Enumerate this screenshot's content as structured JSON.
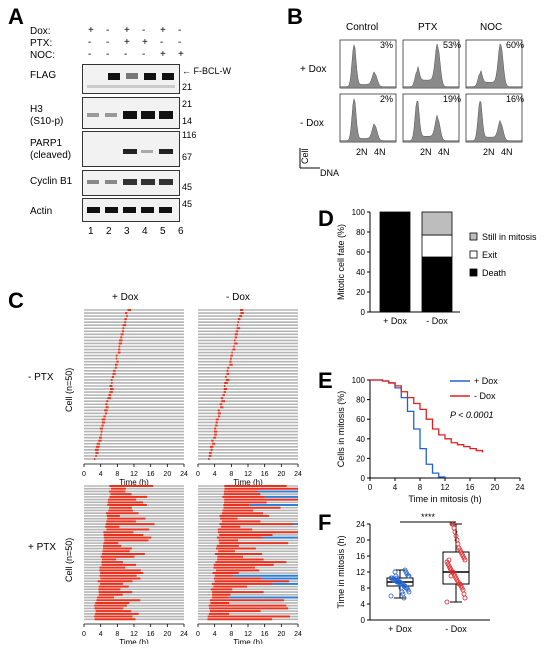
{
  "panels": {
    "A": "A",
    "B": "B",
    "C": "C",
    "D": "D",
    "E": "E",
    "F": "F"
  },
  "panelA": {
    "condition_labels": [
      "Dox:",
      "PTX:",
      "NOC:"
    ],
    "condition_rows": [
      [
        "+",
        "-",
        "+",
        "-",
        "+",
        "-"
      ],
      [
        "-",
        "-",
        "+",
        "+",
        "-",
        "-"
      ],
      [
        "-",
        "-",
        "-",
        "-",
        "+",
        "+"
      ]
    ],
    "blots": [
      {
        "name": "FLAG",
        "sublabel": "",
        "markers": [
          "21"
        ]
      },
      {
        "name": "H3",
        "sublabel": "(S10-p)",
        "markers": [
          "21",
          "14"
        ]
      },
      {
        "name": "PARP1",
        "sublabel": "(cleaved)",
        "markers": [
          "116",
          "67"
        ]
      },
      {
        "name": "Cyclin B1",
        "sublabel": "",
        "markers": [
          "45"
        ]
      },
      {
        "name": "Actin",
        "sublabel": "",
        "markers": [
          "45"
        ]
      }
    ],
    "arrow_label": "F-BCL-W",
    "lanes": [
      "1",
      "2",
      "3",
      "4",
      "5",
      "6"
    ]
  },
  "panelB": {
    "columns": [
      "Control",
      "PTX",
      "NOC"
    ],
    "rows": [
      "+ Dox",
      "- Dox"
    ],
    "percents": [
      [
        "3%",
        "53%",
        "60%"
      ],
      [
        "2%",
        "19%",
        "16%"
      ]
    ],
    "xticks": [
      "2N",
      "4N"
    ],
    "ylabel": "Cell",
    "xlabel": "DNA"
  },
  "panelC": {
    "col_titles": [
      "+ Dox",
      "- Dox"
    ],
    "row_labels": [
      "- PTX",
      "+ PTX"
    ],
    "ylabel": "Cell (n=50)",
    "xlabel": "Time (h)",
    "xticks": [
      "0",
      "4",
      "8",
      "12",
      "16",
      "20",
      "24"
    ],
    "colors": {
      "interphase": "#b5b5b5",
      "mitosis": "#e8321e",
      "exit": "#2f7fd6"
    }
  },
  "chart_data": [
    {
      "type": "bar",
      "categories": [
        "+ Dox",
        "- Dox"
      ],
      "series": [
        {
          "name": "Death",
          "values": [
            100,
            55
          ]
        },
        {
          "name": "Exit",
          "values": [
            0,
            22
          ]
        },
        {
          "name": "Still in mitosis",
          "values": [
            0,
            23
          ]
        }
      ],
      "ylabel": "Mitotic cell fate (%)",
      "ylim": [
        0,
        100
      ],
      "yticks": [
        "0",
        "20",
        "40",
        "60",
        "80",
        "100"
      ],
      "colors": [
        "#000000",
        "#ffffff",
        "#bdbdbd"
      ]
    },
    {
      "type": "line",
      "series": [
        {
          "name": "+ Dox",
          "color": "#2060d0",
          "x": [
            0,
            2,
            3,
            4,
            5,
            6,
            7,
            8,
            9,
            10,
            11,
            12
          ],
          "y": [
            100,
            99,
            97,
            92,
            82,
            68,
            50,
            30,
            14,
            5,
            1,
            0
          ]
        },
        {
          "name": "- Dox",
          "color": "#e02020",
          "x": [
            0,
            2,
            3,
            4,
            5,
            6,
            7,
            8,
            9,
            10,
            11,
            12,
            13,
            14,
            15,
            16,
            17,
            18
          ],
          "y": [
            100,
            99,
            97,
            94,
            88,
            82,
            76,
            70,
            60,
            50,
            44,
            40,
            36,
            34,
            32,
            30,
            28,
            26
          ]
        }
      ],
      "xlabel": "Time in mitosis (h)",
      "ylabel": "Cells in mitosis (%)",
      "xticks": [
        "0",
        "4",
        "8",
        "12",
        "16",
        "20",
        "24"
      ],
      "yticks": [
        "0",
        "20",
        "40",
        "60",
        "80",
        "100"
      ],
      "xlim": [
        0,
        24
      ],
      "ylim": [
        0,
        100
      ],
      "annotation": "P < 0.0001"
    },
    {
      "type": "box",
      "categories": [
        "+ Dox",
        "- Dox"
      ],
      "boxes": [
        {
          "min": 5.5,
          "q1": 8.5,
          "median": 9.5,
          "q3": 10.5,
          "max": 12.5
        },
        {
          "min": 4.5,
          "q1": 9,
          "median": 12,
          "q3": 17,
          "max": 24
        }
      ],
      "points": [
        [
          6,
          7,
          7.5,
          8,
          8,
          8.5,
          8.5,
          9,
          9,
          9,
          9.5,
          9.5,
          9.5,
          9.5,
          10,
          10,
          10,
          10,
          10.5,
          10.5,
          11,
          11,
          11.5,
          12,
          12.5,
          5.5,
          6.5,
          7,
          8,
          9,
          9.5,
          10,
          10.5,
          11,
          12
        ],
        [
          4.5,
          5.5,
          6.5,
          7.5,
          8,
          8.5,
          9,
          9,
          9.5,
          10,
          10.5,
          11,
          11.5,
          12,
          12,
          12.5,
          13,
          13.5,
          14,
          14.5,
          15,
          15.5,
          16,
          16.5,
          17,
          17.5,
          18,
          19,
          20,
          21,
          22,
          23,
          24,
          24,
          11,
          13,
          15
        ]
      ],
      "ylabel": "Time in mitosis (h)",
      "ylim": [
        0,
        24
      ],
      "yticks": [
        "0",
        "4",
        "8",
        "12",
        "16",
        "20",
        "24"
      ],
      "significance": "****",
      "colors": [
        "#2060d0",
        "#e02020"
      ]
    }
  ]
}
